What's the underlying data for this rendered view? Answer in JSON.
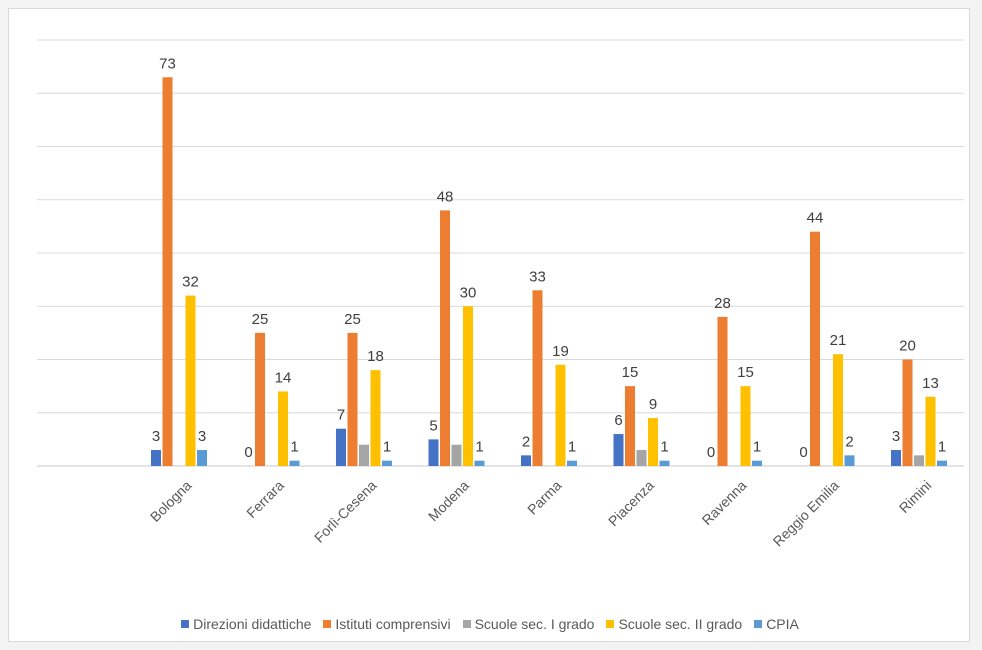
{
  "chart_data": {
    "type": "bar",
    "title": "",
    "xlabel": "",
    "ylabel": "",
    "ylim": [
      0,
      80
    ],
    "grid": true,
    "legend_position": "bottom",
    "categories": [
      "Bologna",
      "Ferrara",
      "Forlì-Cesena",
      "Modena",
      "Parma",
      "Piacenza",
      "Ravenna",
      "Reggio Emilia",
      "Rimini"
    ],
    "series": [
      {
        "name": "Direzioni didattiche",
        "color": "#4472c4",
        "values": [
          3,
          0,
          7,
          5,
          2,
          6,
          0,
          0,
          3
        ],
        "labels": [
          "3",
          "0",
          "7",
          "5",
          "2",
          "6",
          "0",
          "0",
          "3"
        ]
      },
      {
        "name": "Istituti comprensivi",
        "color": "#ed7d31",
        "values": [
          73,
          25,
          25,
          48,
          33,
          15,
          28,
          44,
          20
        ],
        "labels": [
          "73",
          "25",
          "25",
          "48",
          "33",
          "15",
          "28",
          "44",
          "20"
        ]
      },
      {
        "name": "Scuole sec. I grado",
        "color": "#a5a5a5",
        "values": [
          0,
          0,
          4,
          4,
          0,
          3,
          0,
          0,
          2
        ],
        "labels": [
          "",
          "",
          "",
          "",
          "",
          "",
          "",
          "",
          ""
        ]
      },
      {
        "name": "Scuole sec. II grado",
        "color": "#ffc000",
        "values": [
          32,
          14,
          18,
          30,
          19,
          9,
          15,
          21,
          13
        ],
        "labels": [
          "32",
          "14",
          "18",
          "30",
          "19",
          "9",
          "15",
          "21",
          "13"
        ]
      },
      {
        "name": "CPIA",
        "color": "#5b9bd5",
        "values": [
          3,
          1,
          1,
          1,
          1,
          1,
          1,
          2,
          1
        ],
        "labels": [
          "3",
          "1",
          "1",
          "1",
          "1",
          "1",
          "1",
          "2",
          "1"
        ]
      }
    ]
  }
}
